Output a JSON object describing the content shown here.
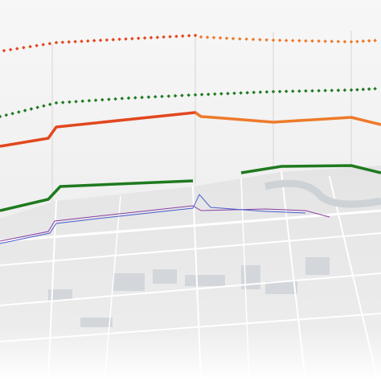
{
  "tracks": [
    {
      "color": "#e2471f",
      "color_end": "#ee7a2a",
      "dotted": true
    },
    {
      "color": "#1f7a1f",
      "color_end": "#1f7a1f",
      "dotted": true
    },
    {
      "color": "#e2471f",
      "color_end": "#ee7a2a",
      "dotted": false
    },
    {
      "color": "#1f7a1f",
      "color_end": "#1f7a1f",
      "dotted": false
    }
  ]
}
